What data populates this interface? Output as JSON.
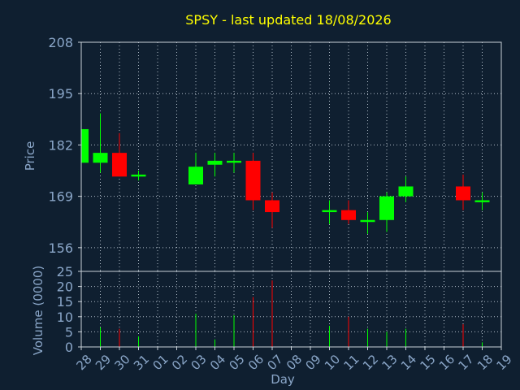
{
  "chart_data": {
    "type": "candlestick",
    "title": "SPSY - last updated 18/08/2026",
    "price_ylabel": "Price",
    "volume_ylabel": "Volume (0000)",
    "xlabel": "Day",
    "price_ylim": [
      150,
      208
    ],
    "price_yticks": [
      156,
      169,
      182,
      195,
      208
    ],
    "volume_ylim": [
      0,
      25
    ],
    "volume_yticks": [
      0,
      5,
      10,
      15,
      20,
      25
    ],
    "grid": true,
    "x_ticks": [
      "28",
      "29",
      "30",
      "31",
      "01",
      "02",
      "03",
      "04",
      "05",
      "06",
      "07",
      "08",
      "09",
      "10",
      "11",
      "12",
      "13",
      "14",
      "15",
      "16",
      "17",
      "18",
      "19"
    ],
    "candles": [
      {
        "day": "28",
        "open": 177.5,
        "high": 186,
        "low": 177.5,
        "close": 186
      },
      {
        "day": "29",
        "open": 177.5,
        "high": 190,
        "low": 175,
        "close": 180
      },
      {
        "day": "30",
        "open": 180,
        "high": 185,
        "low": 174,
        "close": 174
      },
      {
        "day": "31",
        "open": 174,
        "high": 175.5,
        "low": 173,
        "close": 174.5
      },
      {
        "day": "03",
        "open": 172,
        "high": 180,
        "low": 172,
        "close": 176.5
      },
      {
        "day": "04",
        "open": 177,
        "high": 180,
        "low": 174,
        "close": 178
      },
      {
        "day": "05",
        "open": 177.5,
        "high": 180,
        "low": 175,
        "close": 178
      },
      {
        "day": "06",
        "open": 178,
        "high": 180,
        "low": 165.5,
        "close": 168
      },
      {
        "day": "07",
        "open": 168,
        "high": 170,
        "low": 161,
        "close": 165
      },
      {
        "day": "10",
        "open": 165,
        "high": 168,
        "low": 162,
        "close": 165.5
      },
      {
        "day": "11",
        "open": 165.5,
        "high": 168,
        "low": 162,
        "close": 163
      },
      {
        "day": "12",
        "open": 162.5,
        "high": 165,
        "low": 159.5,
        "close": 163
      },
      {
        "day": "13",
        "open": 163,
        "high": 170,
        "low": 160,
        "close": 169
      },
      {
        "day": "14",
        "open": 169,
        "high": 174,
        "low": 167.5,
        "close": 171.5
      },
      {
        "day": "17",
        "open": 171.5,
        "high": 174.5,
        "low": 165.5,
        "close": 168
      },
      {
        "day": "18",
        "open": 167.5,
        "high": 170,
        "low": 165.5,
        "close": 168
      }
    ],
    "volume": [
      {
        "day": "29",
        "value": 6.5,
        "color": "up"
      },
      {
        "day": "30",
        "value": 6,
        "color": "down"
      },
      {
        "day": "31",
        "value": 3.5,
        "color": "up"
      },
      {
        "day": "03",
        "value": 11,
        "color": "up"
      },
      {
        "day": "04",
        "value": 2.5,
        "color": "up"
      },
      {
        "day": "05",
        "value": 10.5,
        "color": "up"
      },
      {
        "day": "06",
        "value": 16.5,
        "color": "down"
      },
      {
        "day": "07",
        "value": 22,
        "color": "down"
      },
      {
        "day": "10",
        "value": 7,
        "color": "up"
      },
      {
        "day": "11",
        "value": 10,
        "color": "down"
      },
      {
        "day": "12",
        "value": 6,
        "color": "up"
      },
      {
        "day": "13",
        "value": 5,
        "color": "up"
      },
      {
        "day": "14",
        "value": 6,
        "color": "up"
      },
      {
        "day": "17",
        "value": 7.5,
        "color": "down"
      },
      {
        "day": "18",
        "value": 1.5,
        "color": "up"
      }
    ],
    "colors": {
      "background": "#0f1f30",
      "title": "#ffff00",
      "axis_text": "#8aa6c8",
      "up": "#00ff00",
      "down": "#ff0000",
      "grid": "#b0bcc8",
      "frame": "#c8d0d8"
    }
  }
}
